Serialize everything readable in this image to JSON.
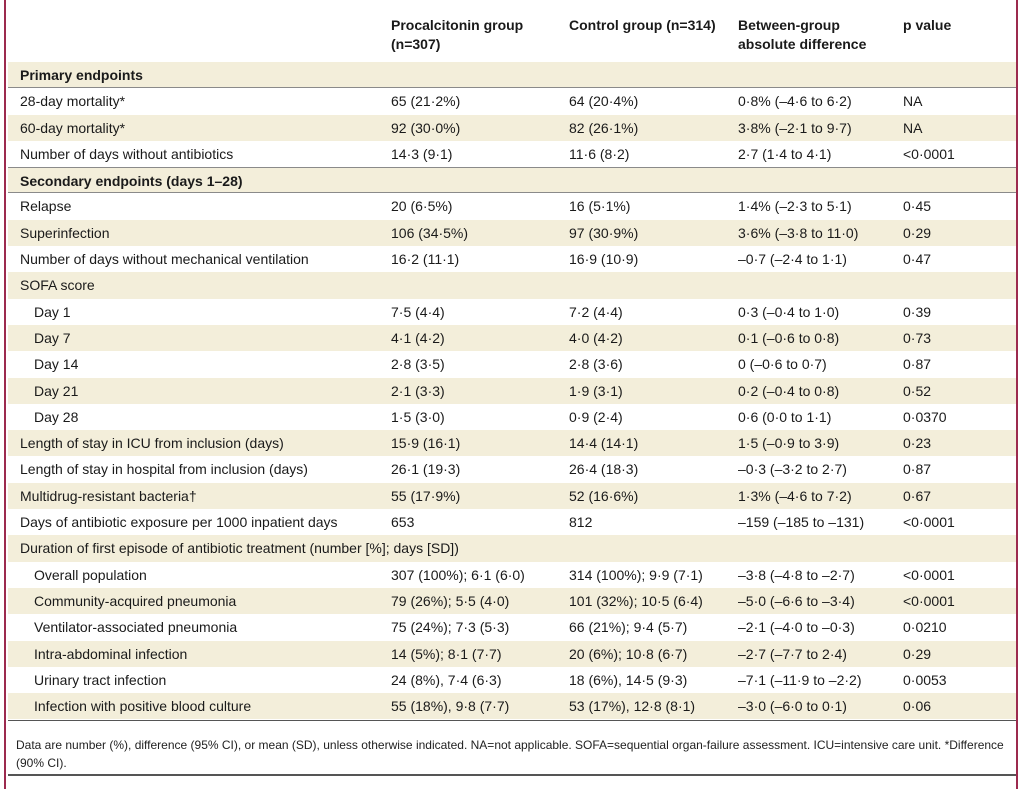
{
  "header": {
    "col1": "Procalcitonin group (n=307)",
    "col2": "Control group (n=314)",
    "col3": "Between-group absolute difference",
    "col4": "p value"
  },
  "rows": [
    {
      "label": "Primary endpoints",
      "pct": "",
      "ctl": "",
      "diff": "",
      "p": ""
    },
    {
      "label": "28-day mortality*",
      "pct": "65 (21·2%)",
      "ctl": "64 (20·4%)",
      "diff": "0·8% (–4·6 to 6·2)",
      "p": "NA"
    },
    {
      "label": "60-day mortality*",
      "pct": "92 (30·0%)",
      "ctl": "82 (26·1%)",
      "diff": "3·8% (–2·1 to 9·7)",
      "p": "NA"
    },
    {
      "label": "Number of days without antibiotics",
      "pct": "14·3 (9·1)",
      "ctl": "11·6 (8·2)",
      "diff": "2·7 (1·4 to 4·1)",
      "p": "<0·0001"
    },
    {
      "label": "Secondary endpoints (days 1–28)",
      "pct": "",
      "ctl": "",
      "diff": "",
      "p": ""
    },
    {
      "label": "Relapse",
      "pct": "20 (6·5%)",
      "ctl": "16 (5·1%)",
      "diff": "1·4% (–2·3 to 5·1)",
      "p": "0·45"
    },
    {
      "label": "Superinfection",
      "pct": "106 (34·5%)",
      "ctl": "97 (30·9%)",
      "diff": "3·6% (–3·8 to 11·0)",
      "p": "0·29"
    },
    {
      "label": "Number of days without mechanical ventilation",
      "pct": "16·2 (11·1)",
      "ctl": "16·9 (10·9)",
      "diff": "–0·7 (–2·4 to 1·1)",
      "p": "0·47"
    },
    {
      "label": "SOFA score",
      "pct": "",
      "ctl": "",
      "diff": "",
      "p": ""
    },
    {
      "label": "Day 1",
      "pct": "7·5 (4·4)",
      "ctl": "7·2 (4·4)",
      "diff": "0·3 (–0·4 to 1·0)",
      "p": "0·39"
    },
    {
      "label": "Day 7",
      "pct": "4·1 (4·2)",
      "ctl": "4·0 (4·2)",
      "diff": "0·1 (–0·6 to 0·8)",
      "p": "0·73"
    },
    {
      "label": "Day 14",
      "pct": "2·8 (3·5)",
      "ctl": "2·8 (3·6)",
      "diff": "0 (–0·6 to 0·7)",
      "p": "0·87"
    },
    {
      "label": "Day 21",
      "pct": "2·1 (3·3)",
      "ctl": "1·9 (3·1)",
      "diff": "0·2 (–0·4 to 0·8)",
      "p": "0·52"
    },
    {
      "label": "Day 28",
      "pct": "1·5 (3·0)",
      "ctl": "0·9 (2·4)",
      "diff": "0·6 (0·0 to 1·1)",
      "p": "0·0370"
    },
    {
      "label": "Length of stay in ICU from inclusion (days)",
      "pct": "15·9 (16·1)",
      "ctl": "14·4 (14·1)",
      "diff": "1·5 (–0·9 to 3·9)",
      "p": "0·23"
    },
    {
      "label": "Length of stay in hospital from inclusion (days)",
      "pct": "26·1 (19·3)",
      "ctl": "26·4 (18·3)",
      "diff": "–0·3 (–3·2 to 2·7)",
      "p": "0·87"
    },
    {
      "label": "Multidrug-resistant bacteria†",
      "pct": "55 (17·9%)",
      "ctl": "52 (16·6%)",
      "diff": "1·3% (–4·6 to 7·2)",
      "p": "0·67"
    },
    {
      "label": "Days of antibiotic exposure per 1000 inpatient days",
      "pct": "653",
      "ctl": "812",
      "diff": "–159 (–185 to –131)",
      "p": "<0·0001"
    },
    {
      "label": "Duration of first episode of antibiotic treatment (number [%]; days [SD])",
      "pct": "",
      "ctl": "",
      "diff": "",
      "p": ""
    },
    {
      "label": "Overall population",
      "pct": "307 (100%); 6·1 (6·0)",
      "ctl": "314 (100%); 9·9 (7·1)",
      "diff": "–3·8 (–4·8 to –2·7)",
      "p": "<0·0001"
    },
    {
      "label": "Community-acquired pneumonia",
      "pct": "79 (26%); 5·5 (4·0)",
      "ctl": "101 (32%); 10·5 (6·4)",
      "diff": "–5·0 (–6·6 to –3·4)",
      "p": "<0·0001"
    },
    {
      "label": "Ventilator-associated pneumonia",
      "pct": "75 (24%); 7·3 (5·3)",
      "ctl": "66 (21%); 9·4 (5·7)",
      "diff": "–2·1 (–4·0 to –0·3)",
      "p": "0·0210"
    },
    {
      "label": "Intra-abdominal infection",
      "pct": "14 (5%); 8·1 (7·7)",
      "ctl": "20 (6%); 10·8 (6·7)",
      "diff": "–2·7 (–7·7 to 2·4)",
      "p": "0·29"
    },
    {
      "label": "Urinary tract infection",
      "pct": "24 (8%), 7·4 (6·3)",
      "ctl": "18 (6%), 14·5 (9·3)",
      "diff": "–7·1 (–11·9 to –2·2)",
      "p": "0·0053"
    },
    {
      "label": "Infection with positive blood culture",
      "pct": "55 (18%), 9·8 (7·7)",
      "ctl": "53 (17%), 12·8 (8·1)",
      "diff": "–3·0 (–6·0 to 0·1)",
      "p": "0·06"
    }
  ],
  "footnote": "Data are number (%), difference (95% CI), or mean (SD), unless otherwise indicated. NA=not applicable. SOFA=sequential organ-failure assessment. ICU=intensive care unit. *Difference (90% CI)."
}
